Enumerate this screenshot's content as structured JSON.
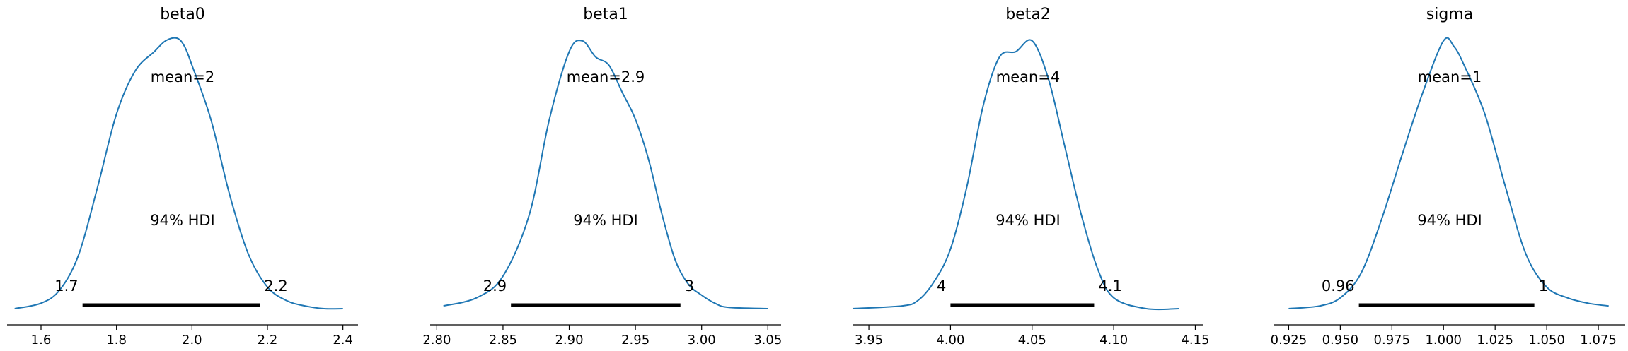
{
  "chart_data": [
    {
      "type": "line",
      "title": "beta0",
      "xlim": [
        1.51,
        2.44
      ],
      "ticks": [
        1.6,
        1.8,
        2.0,
        2.2,
        2.4
      ],
      "tick_labels": [
        "1.6",
        "1.8",
        "2.0",
        "2.2",
        "2.4"
      ],
      "mean_label": "mean=2",
      "hdi_label": "94% HDI",
      "hdi": [
        1.71,
        2.18
      ],
      "hdi_low_label": "1.7",
      "hdi_high_label": "2.2",
      "density": {
        "x": [
          1.53,
          1.6,
          1.65,
          1.7,
          1.75,
          1.8,
          1.85,
          1.9,
          1.93,
          1.96,
          1.98,
          2.0,
          2.05,
          2.1,
          2.15,
          2.2,
          2.25,
          2.3,
          2.35,
          2.4
        ],
        "y": [
          0.0,
          0.02,
          0.07,
          0.2,
          0.45,
          0.72,
          0.88,
          0.95,
          0.99,
          1.0,
          0.97,
          0.9,
          0.7,
          0.42,
          0.2,
          0.08,
          0.03,
          0.01,
          0.0,
          0.0
        ]
      }
    },
    {
      "type": "line",
      "title": "beta1",
      "xlim": [
        2.795,
        3.06
      ],
      "ticks": [
        2.8,
        2.85,
        2.9,
        2.95,
        3.0,
        3.05
      ],
      "tick_labels": [
        "2.80",
        "2.85",
        "2.90",
        "2.95",
        "3.00",
        "3.05"
      ],
      "mean_label": "mean=2.9",
      "hdi_label": "94% HDI",
      "hdi": [
        2.856,
        2.984
      ],
      "hdi_low_label": "2.9",
      "hdi_high_label": "3",
      "density": {
        "x": [
          2.805,
          2.83,
          2.85,
          2.87,
          2.885,
          2.9,
          2.91,
          2.92,
          2.93,
          2.94,
          2.95,
          2.96,
          2.97,
          2.98,
          2.99,
          3.0,
          3.01,
          3.02,
          3.05
        ],
        "y": [
          0.01,
          0.04,
          0.12,
          0.35,
          0.7,
          0.95,
          0.99,
          0.93,
          0.9,
          0.8,
          0.7,
          0.55,
          0.35,
          0.18,
          0.09,
          0.05,
          0.02,
          0.005,
          0.0
        ]
      }
    },
    {
      "type": "line",
      "title": "beta2",
      "xlim": [
        3.94,
        4.155
      ],
      "ticks": [
        3.95,
        4.0,
        4.05,
        4.1,
        4.15
      ],
      "tick_labels": [
        "3.95",
        "4.00",
        "4.05",
        "4.10",
        "4.15"
      ],
      "mean_label": "mean=4",
      "hdi_label": "94% HDI",
      "hdi": [
        4.0,
        4.088
      ],
      "hdi_low_label": "4",
      "hdi_high_label": "4.1",
      "density": {
        "x": [
          3.94,
          3.97,
          3.98,
          3.99,
          4.0,
          4.01,
          4.02,
          4.03,
          4.04,
          4.05,
          4.06,
          4.07,
          4.08,
          4.09,
          4.1,
          4.12,
          4.14
        ],
        "y": [
          0.0,
          0.01,
          0.03,
          0.1,
          0.22,
          0.45,
          0.75,
          0.93,
          0.95,
          0.99,
          0.85,
          0.6,
          0.35,
          0.15,
          0.04,
          0.0,
          0.0
        ]
      }
    },
    {
      "type": "line",
      "title": "sigma",
      "xlim": [
        0.918,
        1.088
      ],
      "ticks": [
        0.925,
        0.95,
        0.975,
        1.0,
        1.025,
        1.05,
        1.075
      ],
      "tick_labels": [
        "0.925",
        "0.950",
        "0.975",
        "1.000",
        "1.025",
        "1.050",
        "1.075"
      ],
      "mean_label": "mean=1",
      "hdi_label": "94% HDI",
      "hdi": [
        0.959,
        1.044
      ],
      "hdi_low_label": "0.96",
      "hdi_high_label": "1",
      "density": {
        "x": [
          0.925,
          0.94,
          0.95,
          0.96,
          0.97,
          0.98,
          0.99,
          1.0,
          1.005,
          1.01,
          1.02,
          1.03,
          1.04,
          1.05,
          1.06,
          1.07,
          1.08
        ],
        "y": [
          0.0,
          0.01,
          0.04,
          0.13,
          0.33,
          0.57,
          0.8,
          0.99,
          0.97,
          0.9,
          0.72,
          0.45,
          0.2,
          0.08,
          0.04,
          0.02,
          0.01
        ]
      }
    }
  ],
  "colors": {
    "density_line": "#1f77b4",
    "hdi_bar": "#000000",
    "axis": "#000000"
  }
}
